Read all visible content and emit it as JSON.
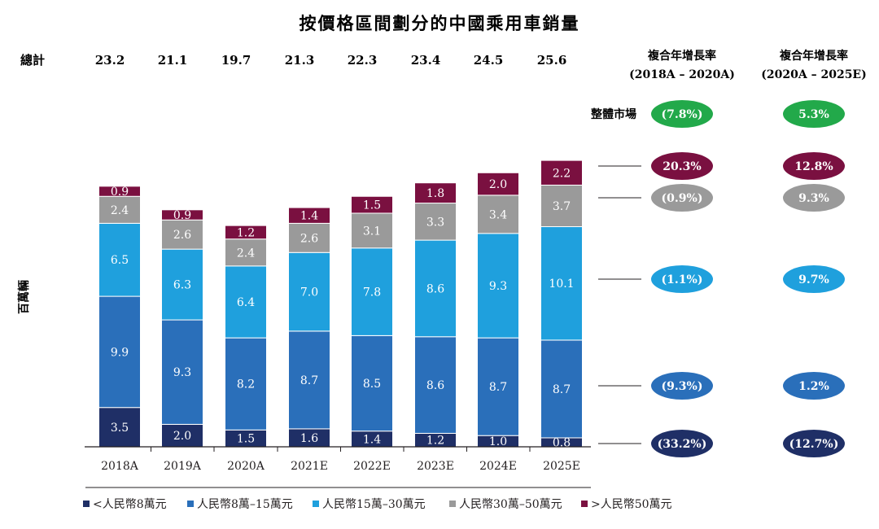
{
  "chart_data": {
    "type": "bar",
    "stacked": true,
    "title": "按價格區間劃分的中國乘用車銷量",
    "ylabel": "百萬輛",
    "totals_label": "總計",
    "categories": [
      "2018A",
      "2019A",
      "2020A",
      "2021E",
      "2022E",
      "2023E",
      "2024E",
      "2025E"
    ],
    "totals": [
      "23.2",
      "21.1",
      "19.7",
      "21.3",
      "22.3",
      "23.4",
      "24.5",
      "25.6"
    ],
    "series": [
      {
        "name": "<人民幣8萬元",
        "color": "#1f2f66",
        "values": [
          3.5,
          2.0,
          1.5,
          1.6,
          1.4,
          1.2,
          1.0,
          0.8
        ]
      },
      {
        "name": "人民幣8萬–15萬元",
        "color": "#2a6fba",
        "values": [
          9.9,
          9.3,
          8.2,
          8.7,
          8.5,
          8.6,
          8.7,
          8.7
        ]
      },
      {
        "name": "人民幣15萬–30萬元",
        "color": "#1fa0dd",
        "values": [
          6.5,
          6.3,
          6.4,
          7.0,
          7.8,
          8.6,
          9.3,
          10.1
        ]
      },
      {
        "name": "人民幣30萬–50萬元",
        "color": "#9a9a9a",
        "values": [
          2.4,
          2.6,
          2.4,
          2.6,
          3.1,
          3.3,
          3.4,
          3.7
        ]
      },
      {
        "name": ">人民幣50萬元",
        "color": "#7a1040",
        "values": [
          0.9,
          0.9,
          1.2,
          1.4,
          1.5,
          1.8,
          2.0,
          2.2
        ]
      }
    ],
    "ylim": [
      0,
      28
    ],
    "cagr": {
      "headers": [
        {
          "line1": "複合年增長率",
          "line2": "(2018A – 2020A)"
        },
        {
          "line1": "複合年增長率",
          "line2": "(2020A – 2025E)"
        }
      ],
      "overall_label": "整體市場",
      "overall": {
        "color": "#22a94a",
        "values": [
          "(7.8%)",
          "5.3%"
        ]
      },
      "rows": [
        {
          "series": ">人民幣50萬元",
          "color": "#7a1040",
          "values": [
            "20.3%",
            "12.8%"
          ]
        },
        {
          "series": "人民幣30萬–50萬元",
          "color": "#9a9a9a",
          "values": [
            "(0.9%)",
            "9.3%"
          ]
        },
        {
          "series": "人民幣15萬–30萬元",
          "color": "#1fa0dd",
          "values": [
            "(1.1%)",
            "9.7%"
          ]
        },
        {
          "series": "人民幣8萬–15萬元",
          "color": "#2a6fba",
          "values": [
            "(9.3%)",
            "1.2%"
          ]
        },
        {
          "series": "<人民幣8萬元",
          "color": "#1f2f66",
          "values": [
            "(33.2%)",
            "(12.7%)"
          ]
        }
      ]
    }
  }
}
